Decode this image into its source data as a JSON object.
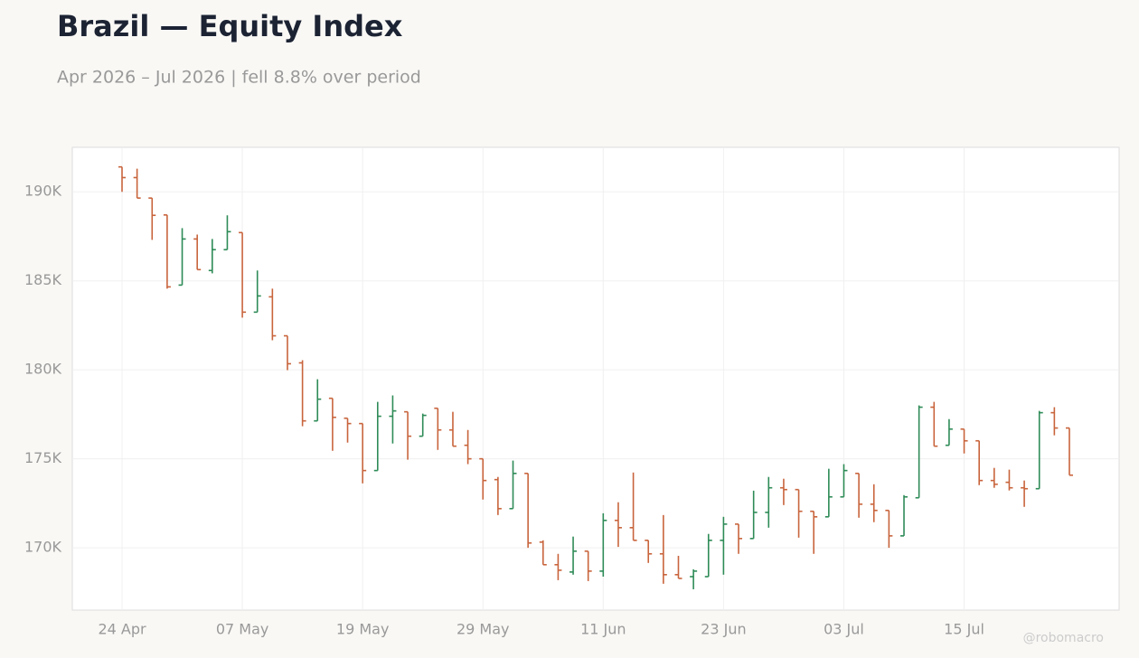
{
  "chart_data": {
    "type": "ohlc",
    "title": "Brazil — Equity Index",
    "subtitle": "Apr 2026 – Jul 2026 | fell 8.8% over period",
    "watermark": "@robomacro",
    "categories": [
      "24 Apr",
      null,
      null,
      null,
      null,
      null,
      null,
      null,
      "07 May",
      null,
      null,
      null,
      null,
      null,
      null,
      null,
      "19 May",
      null,
      null,
      null,
      null,
      null,
      null,
      null,
      "29 May",
      null,
      null,
      null,
      null,
      null,
      null,
      null,
      "11 Jun",
      null,
      null,
      null,
      null,
      null,
      null,
      null,
      "23 Jun",
      null,
      null,
      null,
      null,
      null,
      null,
      null,
      "03 Jul",
      null,
      null,
      null,
      null,
      null,
      null,
      null,
      "15 Jul",
      null,
      null,
      null,
      null,
      null,
      null,
      null
    ],
    "open": [
      191400,
      190800,
      189650,
      188700,
      184760,
      187350,
      185580,
      186750,
      187710,
      183240,
      184100,
      181910,
      180390,
      177130,
      178400,
      177280,
      176980,
      174340,
      177390,
      177640,
      176270,
      177840,
      176620,
      175760,
      175000,
      173830,
      172200,
      174180,
      170320,
      169050,
      168640,
      169810,
      168690,
      171540,
      171130,
      170420,
      169660,
      168490,
      168380,
      168380,
      170420,
      171330,
      170520,
      171990,
      173370,
      173270,
      172050,
      171740,
      172860,
      174180,
      172450,
      172100,
      170670,
      172810,
      177900,
      175760,
      176670,
      176010,
      173780,
      173680,
      173370,
      173320,
      177590,
      176730
    ],
    "high": [
      191400,
      191300,
      189650,
      188700,
      187960,
      187600,
      187350,
      188680,
      187710,
      185580,
      184560,
      181910,
      180540,
      179470,
      178400,
      177280,
      176980,
      178200,
      178560,
      177640,
      177540,
      177840,
      177640,
      176620,
      175000,
      173980,
      174900,
      174180,
      170420,
      169660,
      170630,
      169810,
      171940,
      172560,
      174230,
      170420,
      171840,
      169550,
      168790,
      170780,
      171740,
      171330,
      173210,
      173980,
      173880,
      173270,
      172050,
      174440,
      174700,
      174180,
      173570,
      172100,
      172960,
      178000,
      178200,
      177230,
      176670,
      176010,
      174490,
      174390,
      173780,
      177690,
      177900,
      176730
    ],
    "low": [
      190000,
      189650,
      187300,
      184560,
      184760,
      185630,
      185420,
      186750,
      182930,
      183240,
      181660,
      179980,
      176830,
      177130,
      175450,
      175910,
      173620,
      174340,
      175860,
      174950,
      176270,
      175500,
      175710,
      174700,
      172710,
      171840,
      172200,
      170000,
      169050,
      168180,
      168490,
      168130,
      168380,
      170050,
      170420,
      169150,
      167980,
      168280,
      167670,
      168380,
      168490,
      169660,
      170520,
      171130,
      172400,
      170570,
      169660,
      171740,
      172860,
      171690,
      171440,
      170000,
      170670,
      172810,
      175710,
      175760,
      175300,
      173520,
      173370,
      173220,
      172300,
      173320,
      176320,
      174080
    ],
    "close": [
      190800,
      189650,
      188680,
      184660,
      187350,
      185630,
      186750,
      187760,
      183240,
      184150,
      181910,
      180340,
      177130,
      178350,
      177330,
      176980,
      174340,
      177390,
      177690,
      176270,
      177440,
      176620,
      175710,
      175000,
      173780,
      172200,
      174180,
      170270,
      169050,
      168740,
      169810,
      168690,
      171540,
      171130,
      170420,
      169660,
      168490,
      168280,
      168690,
      170420,
      171330,
      170520,
      171990,
      173370,
      173270,
      172050,
      171740,
      172860,
      174340,
      172450,
      172100,
      170670,
      172860,
      177900,
      175710,
      176670,
      176010,
      173780,
      173570,
      173370,
      173320,
      177590,
      176730,
      174080
    ],
    "up_color": "#2e8b57",
    "down_color": "#c8643c",
    "ylim": [
      166500,
      192500
    ],
    "yticks": [
      {
        "value": 170000,
        "label": "170K"
      },
      {
        "value": 175000,
        "label": "175K"
      },
      {
        "value": 180000,
        "label": "180K"
      },
      {
        "value": 185000,
        "label": "185K"
      },
      {
        "value": 190000,
        "label": "190K"
      }
    ],
    "grid": true
  }
}
